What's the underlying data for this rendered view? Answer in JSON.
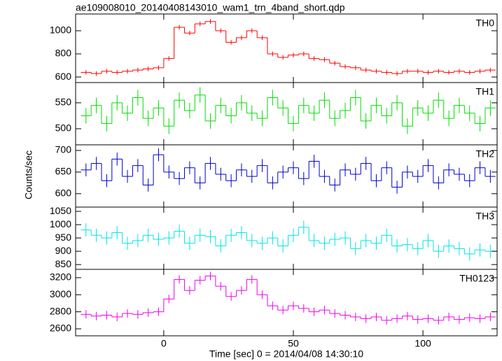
{
  "title": "ae109008010_20140408143010_wam1_trn_4band_short.qdp",
  "xlabel": "Time [sec] 0 = 2014/04/08 14:30:10",
  "ylabel": "Counts/sec",
  "chart_data": [
    {
      "type": "step",
      "name": "TH0",
      "color": "#ff0000",
      "error": 20,
      "xlim": [
        -34,
        128.6
      ],
      "xticks": [
        0,
        50,
        100
      ],
      "ylim": [
        552,
        1145
      ],
      "yticks": [
        600,
        800,
        1000
      ],
      "x": [
        -30,
        -26,
        -22,
        -18,
        -14,
        -10,
        -6,
        -2,
        2,
        6,
        10,
        14,
        18,
        22,
        26,
        30,
        34,
        38,
        42,
        46,
        50,
        54,
        58,
        62,
        66,
        70,
        74,
        78,
        82,
        86,
        90,
        94,
        98,
        102,
        106,
        110,
        114,
        118,
        122,
        126
      ],
      "values": [
        640,
        630,
        650,
        640,
        650,
        660,
        670,
        680,
        760,
        1030,
        980,
        1060,
        1080,
        1000,
        900,
        940,
        1000,
        940,
        800,
        770,
        790,
        800,
        760,
        750,
        720,
        690,
        680,
        660,
        650,
        640,
        630,
        650,
        650,
        640,
        650,
        640,
        650,
        640,
        650,
        660
      ]
    },
    {
      "type": "step",
      "name": "TH1",
      "color": "#00dd00",
      "error": 15,
      "xlim": [
        -34,
        128.6
      ],
      "xticks": [
        0,
        50,
        100
      ],
      "ylim": [
        469,
        589
      ],
      "yticks": [
        500,
        550
      ],
      "x": [
        -30,
        -26,
        -22,
        -18,
        -14,
        -10,
        -6,
        -2,
        2,
        6,
        10,
        14,
        18,
        22,
        26,
        30,
        34,
        38,
        42,
        46,
        50,
        54,
        58,
        62,
        66,
        70,
        74,
        78,
        82,
        86,
        90,
        94,
        98,
        102,
        106,
        110,
        114,
        118,
        122,
        126
      ],
      "values": [
        525,
        545,
        510,
        550,
        530,
        560,
        520,
        540,
        505,
        555,
        535,
        565,
        515,
        545,
        525,
        550,
        530,
        520,
        560,
        540,
        510,
        545,
        530,
        555,
        520,
        535,
        560,
        515,
        545,
        525,
        550,
        505,
        540,
        530,
        555,
        520,
        545,
        530,
        510,
        540
      ]
    },
    {
      "type": "step",
      "name": "TH2",
      "color": "#0000cc",
      "error": 15,
      "xlim": [
        -34,
        128.6
      ],
      "xticks": [
        0,
        50,
        100
      ],
      "ylim": [
        569,
        713
      ],
      "yticks": [
        600,
        650,
        700
      ],
      "x": [
        -30,
        -26,
        -22,
        -18,
        -14,
        -10,
        -6,
        -2,
        2,
        6,
        10,
        14,
        18,
        22,
        26,
        30,
        34,
        38,
        42,
        46,
        50,
        54,
        58,
        62,
        66,
        70,
        74,
        78,
        82,
        86,
        90,
        94,
        98,
        102,
        106,
        110,
        114,
        118,
        122,
        126
      ],
      "values": [
        655,
        670,
        630,
        680,
        640,
        665,
        620,
        690,
        650,
        635,
        660,
        625,
        670,
        645,
        630,
        655,
        640,
        665,
        625,
        650,
        660,
        635,
        675,
        640,
        620,
        655,
        645,
        670,
        630,
        660,
        615,
        650,
        640,
        665,
        625,
        655,
        645,
        630,
        660,
        640
      ]
    },
    {
      "type": "step",
      "name": "TH3",
      "color": "#00e5e5",
      "error": 25,
      "xlim": [
        -34,
        128.6
      ],
      "xticks": [
        0,
        50,
        100
      ],
      "ylim": [
        832,
        1066
      ],
      "yticks": [
        850,
        900,
        950,
        1000,
        1050
      ],
      "x": [
        -30,
        -26,
        -22,
        -18,
        -14,
        -10,
        -6,
        -2,
        2,
        6,
        10,
        14,
        18,
        22,
        26,
        30,
        34,
        38,
        42,
        46,
        50,
        54,
        58,
        62,
        66,
        70,
        74,
        78,
        82,
        86,
        90,
        94,
        98,
        102,
        106,
        110,
        114,
        118,
        122,
        126
      ],
      "values": [
        980,
        960,
        950,
        970,
        930,
        940,
        960,
        945,
        950,
        975,
        930,
        960,
        955,
        920,
        960,
        970,
        940,
        930,
        950,
        920,
        960,
        990,
        940,
        930,
        945,
        950,
        910,
        940,
        930,
        960,
        920,
        925,
        910,
        940,
        900,
        920,
        910,
        890,
        905,
        900
      ]
    },
    {
      "type": "step",
      "name": "TH0123",
      "color": "#ee00ee",
      "error": 50,
      "xlim": [
        -34,
        128.6
      ],
      "xticks": [
        0,
        50,
        100
      ],
      "ylim": [
        2518,
        3298
      ],
      "yticks": [
        2600,
        2800,
        3000,
        3200
      ],
      "x": [
        -30,
        -26,
        -22,
        -18,
        -14,
        -10,
        -6,
        -2,
        2,
        6,
        10,
        14,
        18,
        22,
        26,
        30,
        34,
        38,
        42,
        46,
        50,
        54,
        58,
        62,
        66,
        70,
        74,
        78,
        82,
        86,
        90,
        94,
        98,
        102,
        106,
        110,
        114,
        118,
        122,
        126
      ],
      "values": [
        2770,
        2750,
        2760,
        2740,
        2780,
        2770,
        2790,
        2800,
        2950,
        3180,
        3050,
        3170,
        3220,
        3100,
        2980,
        3050,
        3180,
        3000,
        2870,
        2820,
        2870,
        2840,
        2800,
        2820,
        2780,
        2760,
        2740,
        2720,
        2740,
        2700,
        2720,
        2750,
        2710,
        2720,
        2700,
        2740,
        2710,
        2730,
        2720,
        2740
      ]
    }
  ]
}
